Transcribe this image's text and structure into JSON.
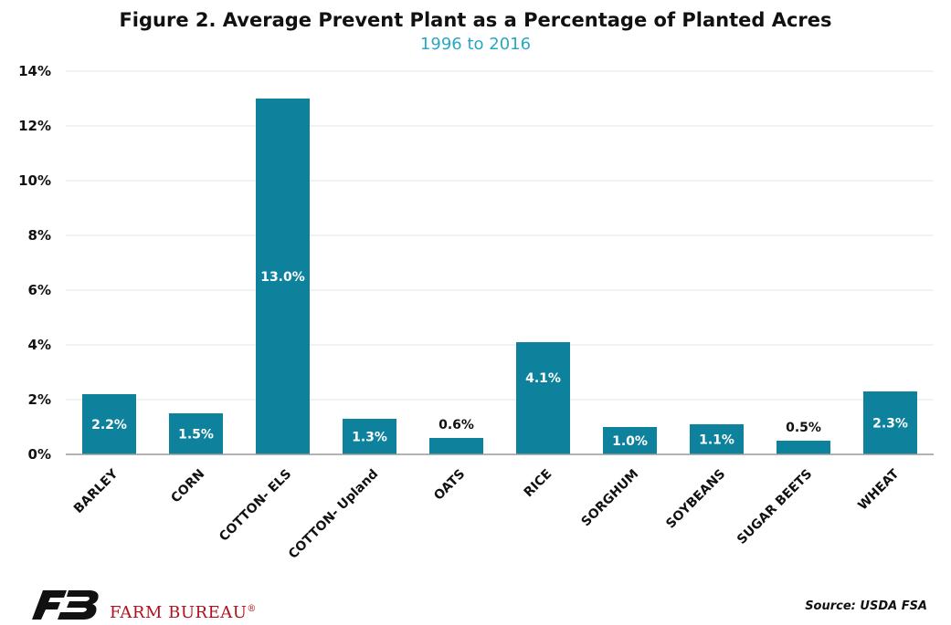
{
  "chart_data": {
    "type": "bar",
    "title": "Figure 2. Average Prevent Plant as a Percentage of Planted Acres",
    "subtitle": "1996 to 2016",
    "categories": [
      "BARLEY",
      "CORN",
      "COTTON- ELS",
      "COTTON- Upland",
      "OATS",
      "RICE",
      "SORGHUM",
      "SOYBEANS",
      "SUGAR BEETS",
      "WHEAT"
    ],
    "values": [
      2.2,
      1.5,
      13.0,
      1.3,
      0.6,
      4.1,
      1.0,
      1.1,
      0.5,
      2.3
    ],
    "data_labels": [
      "2.2%",
      "1.5%",
      "13.0%",
      "1.3%",
      "0.6%",
      "4.1%",
      "1.0%",
      "1.1%",
      "0.5%",
      "2.3%"
    ],
    "ytick_labels": [
      "0%",
      "2%",
      "4%",
      "6%",
      "8%",
      "10%",
      "12%",
      "14%"
    ],
    "ylim": [
      0,
      14
    ],
    "grid": true,
    "bar_color": "#0e829d",
    "legend": "none"
  },
  "branding": {
    "logo_text": "FARM BUREAU",
    "logo_mark": "®",
    "logo_color": "#b0121a",
    "logo_icon": "farm-bureau-fb-logo"
  },
  "source": "Source: USDA FSA"
}
